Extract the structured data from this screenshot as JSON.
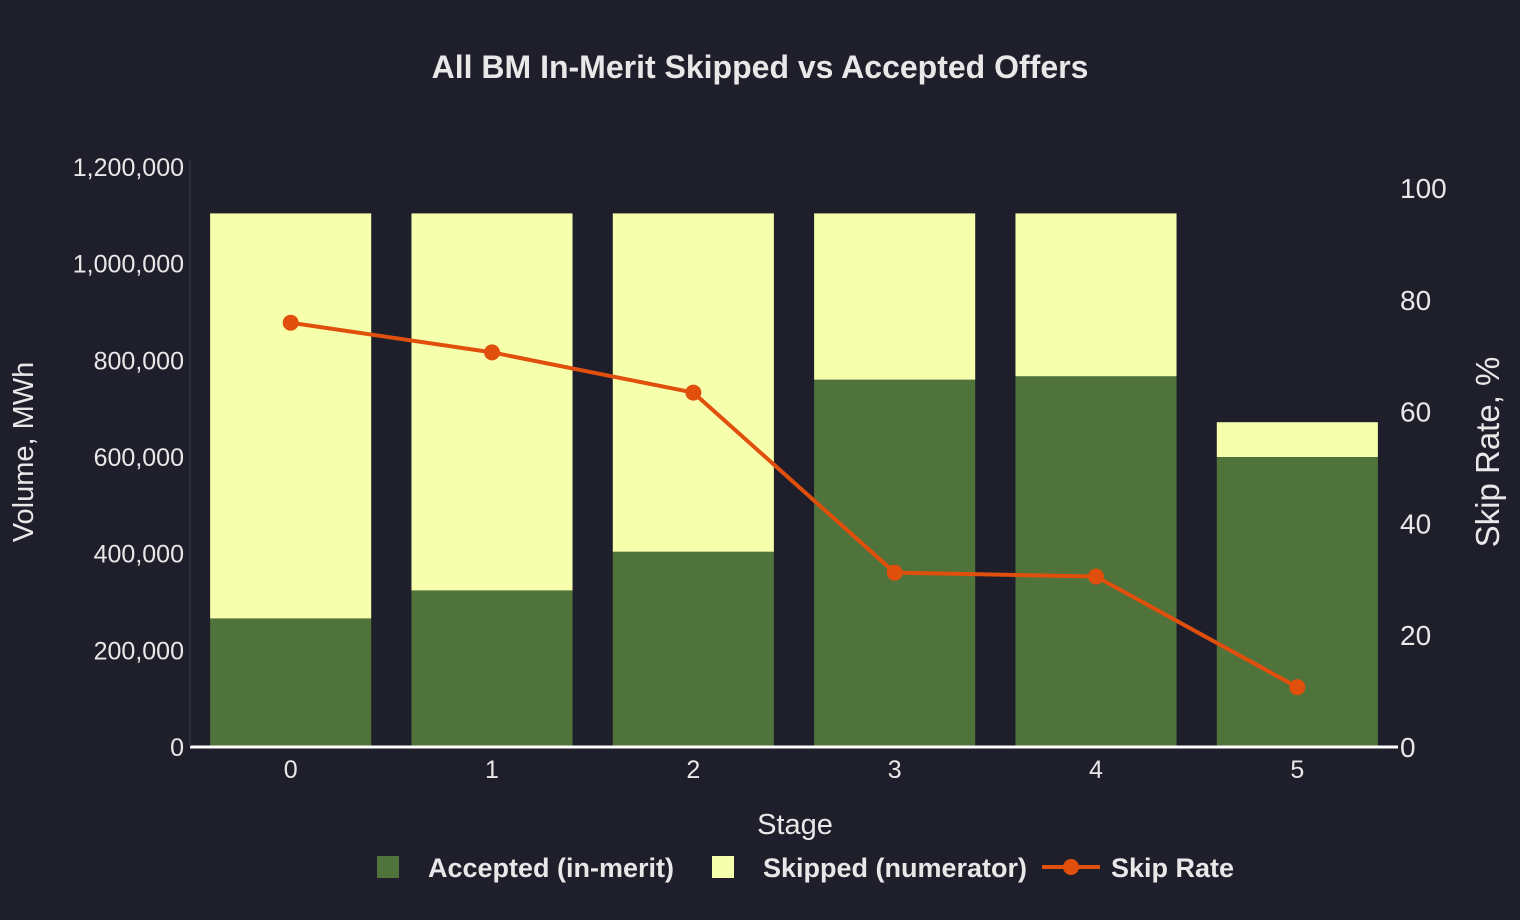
{
  "colors": {
    "background": "#1f1f2b",
    "accepted": "#50733c",
    "skipped": "#f6ffac",
    "skip_rate": "#e04f0c",
    "text": "#e8e8e8",
    "axis_line": "#ffffff"
  },
  "chart_data": {
    "type": "bar",
    "stacked": true,
    "title": "All BM In-Merit Skipped vs Accepted Offers",
    "xlabel": "Stage",
    "ylabel": "Volume, MWh",
    "y2label": "Skip Rate, %",
    "categories": [
      "0",
      "1",
      "2",
      "3",
      "4",
      "5"
    ],
    "ylim": [
      0,
      1200000
    ],
    "y2lim": [
      0,
      100
    ],
    "y_ticks": [
      0,
      200000,
      400000,
      600000,
      800000,
      1000000,
      1200000
    ],
    "y_tick_labels": [
      "0",
      "200,000",
      "400,000",
      "600,000",
      "800,000",
      "1,000,000",
      "1,200,000"
    ],
    "y2_ticks": [
      0,
      20,
      40,
      60,
      80,
      100
    ],
    "y2_tick_labels": [
      "0",
      "20",
      "40",
      "60",
      "80",
      "100"
    ],
    "grid": false,
    "legend_position": "bottom-center",
    "series": [
      {
        "name": "Accepted (in-merit)",
        "type": "bar",
        "values": [
          266000,
          324000,
          404000,
          760000,
          767000,
          600000
        ]
      },
      {
        "name": "Skipped (numerator)",
        "type": "bar",
        "values": [
          838000,
          780000,
          700000,
          344000,
          337000,
          72000
        ]
      },
      {
        "name": "Skip Rate",
        "type": "line",
        "axis": "right",
        "values": [
          75.9,
          70.6,
          63.4,
          31.2,
          30.5,
          10.7
        ]
      }
    ]
  }
}
